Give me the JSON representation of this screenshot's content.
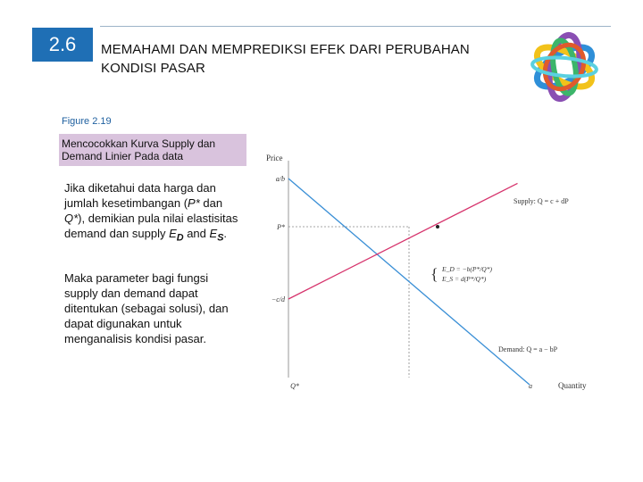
{
  "header": {
    "section_number": "2.6",
    "title": "MEMAHAMI DAN MEMPREDIKSI EFEK DARI PERUBAHAN KONDISI PASAR"
  },
  "sidebar": {
    "figure_label": "Figure 2.19",
    "caption": "Mencocokkan Kurva Supply dan Demand Linier Pada data",
    "paragraph1": {
      "text": "Jika diketahui data harga dan jumlah kesetimbangan (",
      "var_p": "P*",
      "text_and": " dan ",
      "var_q": "Q*",
      "text_mid": "), demikian pula nilai elastisitas demand  dan supply ",
      "ed_base": "E",
      "ed_sub": "D",
      "text_and2": " and ",
      "es_base": "E",
      "es_sub": "S",
      "text_end": "."
    },
    "paragraph2": "Maka parameter bagi fungsi supply dan demand dapat ditentukan (sebagai solusi), dan dapat digunakan untuk menganalisis kondisi pasar."
  },
  "chart_data": {
    "type": "line",
    "ylabel": "Price",
    "xlabel": "Quantity",
    "y_ticks": [
      "a/b",
      "P*",
      "−c/d"
    ],
    "x_ticks": [
      "Q*",
      "a"
    ],
    "series": [
      {
        "name": "Demand: Q = a − bP",
        "color": "#3a8fd6",
        "points": [
          [
            0,
            1.0
          ],
          [
            1.0,
            0
          ]
        ]
      },
      {
        "name": "Supply: Q = c + dP",
        "color": "#d6336c",
        "points": [
          [
            0,
            -0.25
          ],
          [
            0.95,
            0.95
          ]
        ]
      }
    ],
    "equilibrium": {
      "x": 0.5,
      "y": 0.5,
      "label_ed": "E_D = −b(P*/Q*)",
      "label_es": "E_S = d(P*/Q*)"
    },
    "colors": {
      "demand": "#3a8fd6",
      "supply": "#d6336c",
      "axis": "#999999",
      "guide": "#888888"
    }
  }
}
